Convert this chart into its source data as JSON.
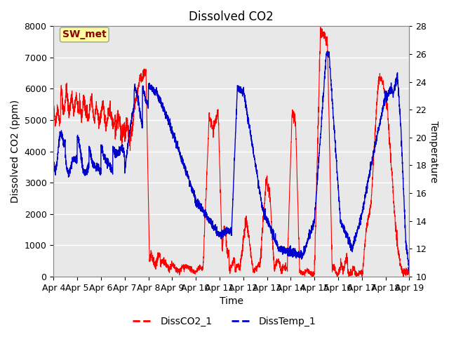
{
  "title": "Dissolved CO2",
  "xlabel": "Time",
  "ylabel_left": "Dissolved CO2 (ppm)",
  "ylabel_right": "Temperature",
  "annotation": "SW_met",
  "legend": [
    "DissCO2_1",
    "DissTemp_1"
  ],
  "co2_color": "#FF0000",
  "temp_color": "#0000CC",
  "fig_facecolor": "#FFFFFF",
  "plot_facecolor": "#E8E8E8",
  "ylim_co2": [
    0,
    8000
  ],
  "ylim_temp": [
    10,
    28
  ],
  "yticks_co2": [
    0,
    1000,
    2000,
    3000,
    4000,
    5000,
    6000,
    7000,
    8000
  ],
  "yticks_temp": [
    10,
    12,
    14,
    16,
    18,
    20,
    22,
    24,
    26,
    28
  ],
  "xtick_days": [
    4,
    5,
    6,
    7,
    8,
    9,
    10,
    11,
    12,
    13,
    14,
    15,
    16,
    17,
    18,
    19
  ],
  "title_fontsize": 12,
  "axis_fontsize": 10,
  "tick_fontsize": 9,
  "annotation_fontsize": 10,
  "legend_fontsize": 10
}
